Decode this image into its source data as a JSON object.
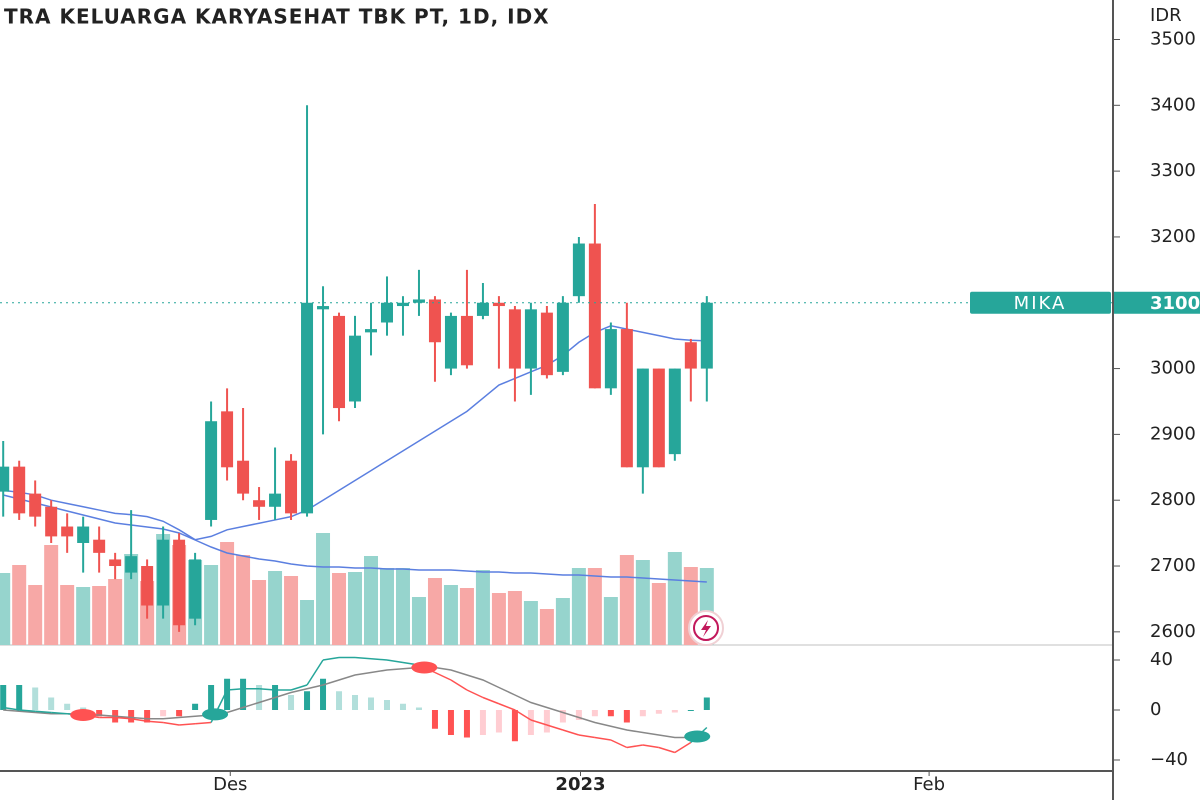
{
  "chart_data": [
    {
      "type": "candlestick",
      "title": "TRA KELUARGA KARYASEHAT TBK PT, 1D, IDX",
      "currency": "IDR",
      "symbol": "MIKA",
      "last_price": 3100,
      "ylim": [
        2580,
        3560
      ],
      "yticks": [
        2600,
        2700,
        2800,
        2900,
        3000,
        3100,
        3200,
        3300,
        3400,
        3500
      ],
      "xlim": [
        -0.2,
        69.4
      ],
      "xticks": [
        {
          "value": 14.2,
          "label": "Des"
        },
        {
          "value": 36.1,
          "label": "2023"
        },
        {
          "value": 57.9,
          "label": "Feb"
        }
      ],
      "up_color": "#26a69a",
      "down_color": "#ef5350",
      "volume_up_color": "#96d4cd",
      "volume_down_color": "#f7a8a6",
      "ma_color": "#5b7fe0",
      "open": [
        2813,
        2851,
        2810,
        2790,
        2760,
        2735,
        2740,
        2710,
        2690,
        2700,
        2640,
        2740,
        2620,
        2770,
        2935,
        2860,
        2800,
        2790,
        2860,
        2780,
        3090,
        3080,
        2950,
        3055,
        3070,
        3095,
        3100,
        3105,
        3000,
        3080,
        3080,
        3100,
        3090,
        3000,
        3085,
        2995,
        3110,
        3190,
        2970,
        3060,
        2850,
        3000,
        2870,
        3040,
        3000
      ],
      "high": [
        2890,
        2860,
        2830,
        2800,
        2780,
        2775,
        2760,
        2720,
        2785,
        2710,
        2760,
        2750,
        2720,
        2950,
        2970,
        2940,
        2820,
        2880,
        2870,
        3400,
        3125,
        3085,
        3080,
        3100,
        3140,
        3110,
        3150,
        3110,
        3085,
        3150,
        3130,
        3110,
        3095,
        3100,
        3095,
        3110,
        3200,
        3250,
        3070,
        3100,
        3000,
        3000,
        3000,
        3045,
        3110
      ],
      "low": [
        2775,
        2770,
        2760,
        2735,
        2720,
        2690,
        2690,
        2680,
        2680,
        2620,
        2620,
        2600,
        2610,
        2760,
        2830,
        2800,
        2770,
        2770,
        2770,
        2775,
        2900,
        2920,
        2940,
        3020,
        3050,
        3050,
        3080,
        2980,
        2990,
        3000,
        3075,
        3000,
        2950,
        2960,
        2985,
        2990,
        3100,
        2970,
        2960,
        2850,
        2810,
        2850,
        2860,
        2950,
        2950
      ],
      "close": [
        2851,
        2780,
        2775,
        2745,
        2745,
        2760,
        2720,
        2700,
        2715,
        2640,
        2740,
        2610,
        2710,
        2920,
        2850,
        2810,
        2790,
        2810,
        2780,
        3100,
        3095,
        2940,
        3050,
        3060,
        3100,
        3100,
        3105,
        3040,
        3080,
        3005,
        3100,
        3095,
        3000,
        3090,
        2990,
        3100,
        3190,
        2970,
        3060,
        2850,
        3000,
        2850,
        3000,
        3000,
        3100
      ],
      "volume_lim": [
        0,
        645
      ],
      "volume": [
        72,
        80,
        60,
        100,
        60,
        58,
        59,
        66,
        91,
        64,
        111,
        100,
        85,
        80,
        103,
        90,
        65,
        74,
        69,
        45,
        112,
        72,
        73,
        89,
        77,
        77,
        48,
        67,
        60,
        57,
        75,
        52,
        54,
        44,
        36,
        47,
        77,
        77,
        48,
        90,
        85,
        62,
        93,
        78,
        77
      ],
      "ma": [
        2815,
        2812,
        2808,
        2800,
        2795,
        2790,
        2785,
        2780,
        2778,
        2775,
        2768,
        2755,
        2740,
        2745,
        2755,
        2760,
        2765,
        2770,
        2775,
        2785,
        2800,
        2815,
        2830,
        2845,
        2860,
        2875,
        2890,
        2905,
        2920,
        2935,
        2955,
        2975,
        2985,
        2995,
        3005,
        3020,
        3040,
        3055,
        3065,
        3060,
        3055,
        3050,
        3045,
        3043,
        3042
      ],
      "volume_ma": [
        150,
        146,
        142,
        138,
        134,
        130,
        126,
        122,
        120,
        118,
        116,
        112,
        105,
        98,
        92,
        89,
        86,
        84,
        81,
        79,
        78,
        78,
        77,
        77,
        76,
        76,
        75,
        75,
        75,
        74,
        73,
        73,
        72,
        72,
        71,
        70,
        70,
        69,
        68,
        68,
        67,
        66,
        65,
        64,
        63
      ]
    },
    {
      "type": "macd",
      "ylim": [
        -48,
        52
      ],
      "yticks": [
        40,
        0,
        {
          "value": -40,
          "label": "−40"
        }
      ],
      "up_color": "#26a69a",
      "down_color": "#ff5252",
      "up_fade_color": "#b2dfdb",
      "down_fade_color": "#ffcdd2",
      "signal_color": "#888888",
      "histogram": [
        20,
        20,
        18,
        10,
        5,
        2,
        -5,
        -10,
        -10,
        -10,
        -5,
        -5,
        5,
        20,
        25,
        25,
        20,
        20,
        12,
        15,
        25,
        15,
        12,
        10,
        8,
        5,
        2,
        -15,
        -20,
        -22,
        -20,
        -18,
        -25,
        -20,
        -18,
        -10,
        -8,
        -5,
        -5,
        -10,
        -5,
        -3,
        -2,
        0,
        10
      ],
      "macd": [
        2,
        0,
        -1,
        -2,
        -3,
        -4,
        -6,
        -6,
        -7,
        -9,
        -10,
        -12,
        -11,
        -10,
        16,
        17,
        17,
        16,
        16,
        20,
        40,
        42,
        42,
        41,
        40,
        38,
        36,
        30,
        24,
        16,
        10,
        5,
        0,
        -8,
        -12,
        -16,
        -20,
        -22,
        -24,
        -30,
        -28,
        -30,
        -34,
        -26,
        -14
      ],
      "signal": [
        0,
        -1,
        -2,
        -3,
        -3,
        -4,
        -4,
        -5,
        -6,
        -7,
        -7,
        -6,
        -5,
        -4,
        -2,
        2,
        6,
        10,
        14,
        17,
        20,
        24,
        28,
        30,
        32,
        33,
        34,
        34,
        32,
        28,
        24,
        18,
        12,
        6,
        2,
        -2,
        -6,
        -10,
        -13,
        -16,
        -18,
        -20,
        -22,
        -22,
        -20
      ]
    }
  ]
}
